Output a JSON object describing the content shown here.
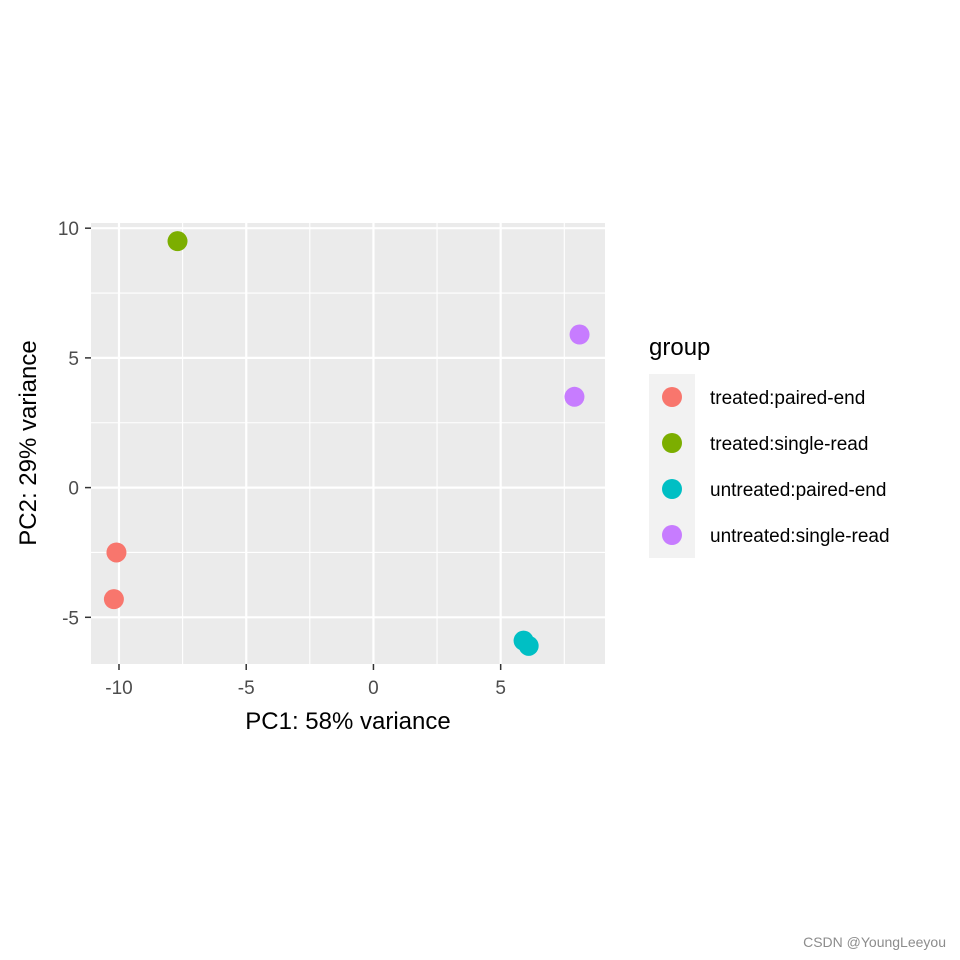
{
  "chart_data": {
    "type": "scatter",
    "xlabel": "PC1: 58% variance",
    "ylabel": "PC2: 29% variance",
    "xlim": [
      -11.1,
      9.1
    ],
    "ylim": [
      -6.8,
      10.2
    ],
    "xticks": [
      -10,
      -5,
      0,
      5
    ],
    "yticks": [
      -5,
      0,
      5,
      10
    ],
    "xtick_labels": [
      "-10",
      "-5",
      "0",
      "5"
    ],
    "ytick_labels": [
      "-5",
      "0",
      "5",
      "10"
    ],
    "grid": true,
    "legend": {
      "title": "group",
      "position": "right",
      "entries": [
        "treated:paired-end",
        "treated:single-read",
        "untreated:paired-end",
        "untreated:single-read"
      ]
    },
    "colors": {
      "treated:paired-end": "#F8766D",
      "treated:single-read": "#7CAE00",
      "untreated:paired-end": "#00BFC4",
      "untreated:single-read": "#C77CFF"
    },
    "points": [
      {
        "group": "treated:single-read",
        "x": -7.7,
        "y": 9.5
      },
      {
        "group": "treated:paired-end",
        "x": -10.1,
        "y": -2.5
      },
      {
        "group": "treated:paired-end",
        "x": -10.2,
        "y": -4.3
      },
      {
        "group": "untreated:paired-end",
        "x": 5.9,
        "y": -5.9
      },
      {
        "group": "untreated:paired-end",
        "x": 6.1,
        "y": -6.1
      },
      {
        "group": "untreated:single-read",
        "x": 8.1,
        "y": 5.9
      },
      {
        "group": "untreated:single-read",
        "x": 7.9,
        "y": 3.5
      }
    ]
  },
  "watermark": "CSDN @YoungLeeyou"
}
